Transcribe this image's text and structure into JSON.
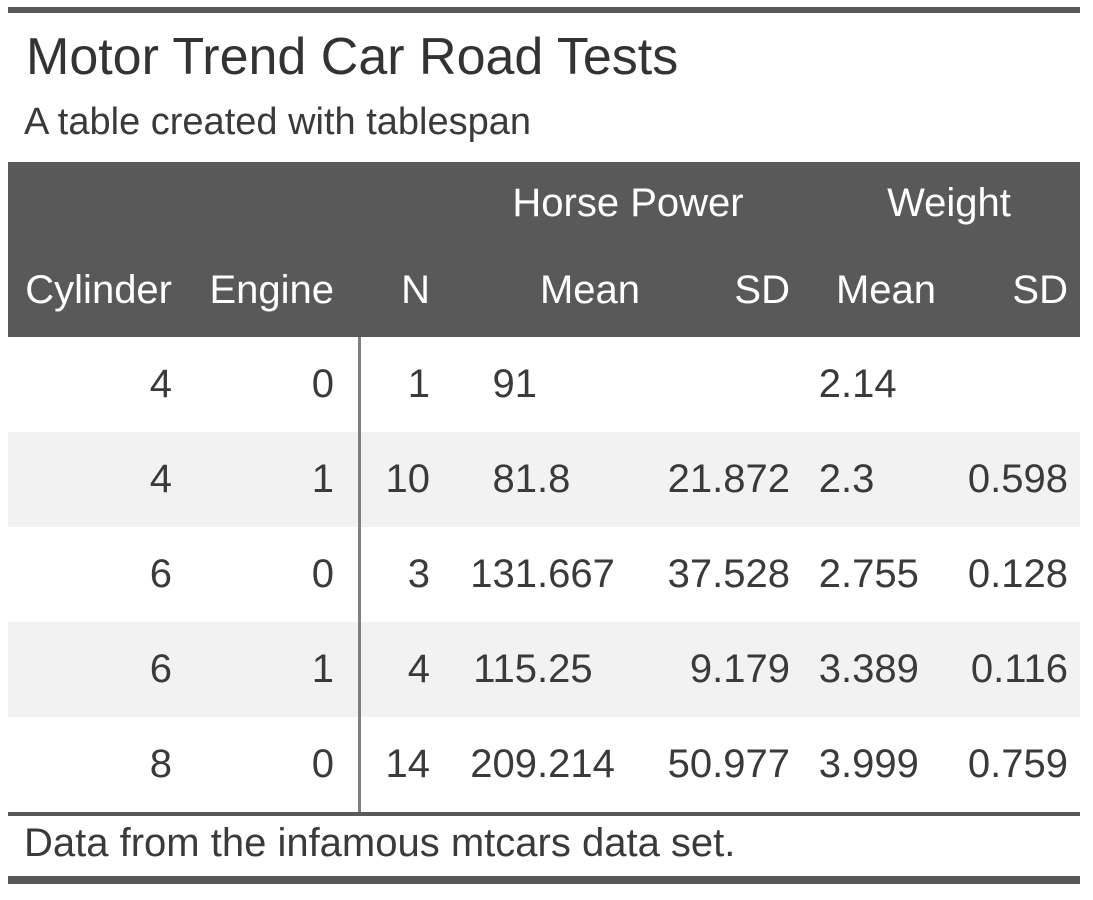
{
  "title": "Motor Trend Car Road Tests",
  "subtitle": "A table created with tablespan",
  "footnote": "Data from the infamous mtcars data set.",
  "colors": {
    "header_bg": "#595959",
    "stripe_bg": "#f2f2f2",
    "rule": "#595959",
    "divider": "#7f7f7f",
    "text": "#3a3a3a",
    "header_text": "#ffffff"
  },
  "chart_data": {
    "type": "table",
    "title": "Motor Trend Car Road Tests",
    "subtitle": "A table created with tablespan",
    "footnote": "Data from the infamous mtcars data set.",
    "spanners": [
      {
        "label": "Horse Power",
        "columns": [
          "Mean",
          "SD"
        ]
      },
      {
        "label": "Weight",
        "columns": [
          "Mean",
          "SD"
        ]
      }
    ],
    "columns": [
      "Cylinder",
      "Engine",
      "N",
      "Mean",
      "SD",
      "Mean",
      "SD"
    ],
    "rows": [
      [
        "4",
        "0",
        "1",
        "91",
        "",
        "2.14",
        ""
      ],
      [
        "4",
        "1",
        "10",
        "81.8",
        "21.872",
        "2.3",
        "0.598"
      ],
      [
        "6",
        "0",
        "3",
        "131.667",
        "37.528",
        "2.755",
        "0.128"
      ],
      [
        "6",
        "1",
        "4",
        "115.25",
        "9.179",
        "3.389",
        "0.116"
      ],
      [
        "8",
        "0",
        "14",
        "209.214",
        "50.977",
        "3.999",
        "0.759"
      ]
    ],
    "striped_row_indices": [
      1,
      3
    ],
    "layout_hints": {
      "decimal_aligned_columns": [
        "Horse Power Mean",
        "Weight Mean"
      ],
      "right_aligned_columns": [
        "Cylinder",
        "Engine",
        "N",
        "Horse Power SD",
        "Weight SD"
      ],
      "vertical_divider_after_column": "Engine"
    }
  }
}
